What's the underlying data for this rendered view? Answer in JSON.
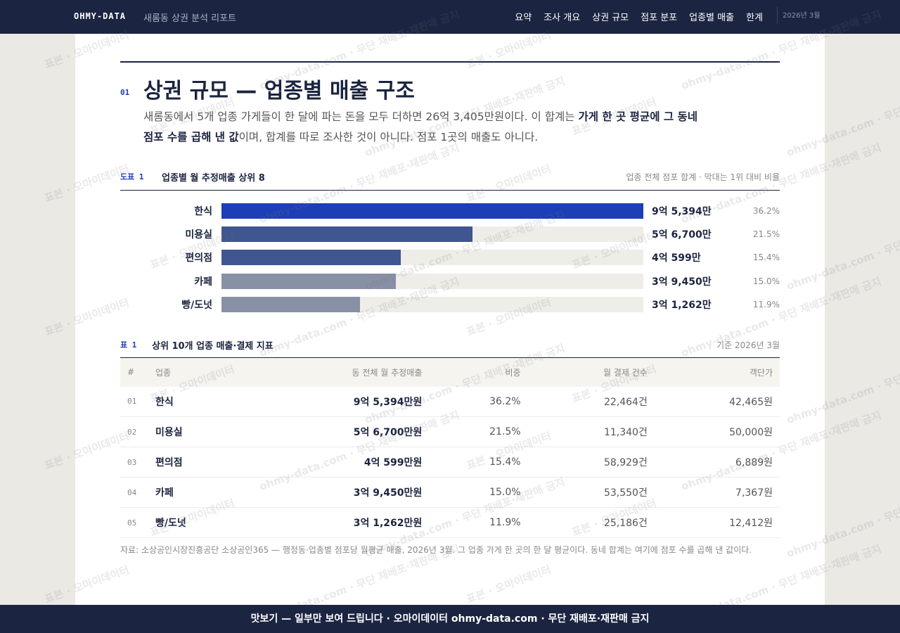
{
  "nav": {
    "brand": "OHMY-DATA",
    "subtitle": "새롬동 상권 분석 리포트",
    "links": [
      "요약",
      "조사 개요",
      "상권 규모",
      "점포 분포",
      "업종별 매출",
      "한계"
    ],
    "date": "2026년 3월"
  },
  "section": {
    "number": "01",
    "title": "상권 규모 — 업종별 매출 구조",
    "paragraph": [
      {
        "text": "새롬동에서 5개 업종 가게들이 한 달에 파는 돈을 모두 더하면 26억 3,405만원이다. 이 합계는 ",
        "bold": false
      },
      {
        "text": "가게 한 곳 평균에 그 동네 점포 수를 곱해 낸 값",
        "bold": true
      },
      {
        "text": "이며, 합계를 따로 조사한 것이 아니다. 점포 1곳의 매출도 아니다.",
        "bold": false
      }
    ]
  },
  "figure": {
    "label": "도표 1",
    "title": "업종별 월 추정매출 상위 8",
    "note": "업종 전체 점포 합계 · 막대는 1위 대비 비율",
    "categories": [
      "한식",
      "미용실",
      "편의점",
      "카페",
      "빵/도넛"
    ],
    "values": [
      95394,
      56700,
      40599,
      39450,
      31262
    ],
    "value_labels": [
      "9억 5,394만",
      "5억 6,700만",
      "4억 599만",
      "3억 9,450만",
      "3억 1,262만"
    ],
    "shares": [
      "36.2%",
      "21.5%",
      "15.4%",
      "15.0%",
      "11.9%"
    ],
    "colors": [
      "#1c3fb6",
      "#3f5690",
      "#3f5690",
      "#8890a5",
      "#8890a5"
    ]
  },
  "table": {
    "label": "표 1",
    "title": "상위 10개 업종 매출·결제 지표",
    "note": "기준 2026년 3월",
    "header": [
      "#",
      "업종",
      "동 전체 월 추정매출",
      "비중",
      "월 결제 건수",
      "객단가"
    ],
    "rows": [
      [
        "01",
        "한식",
        "9억 5,394만원",
        "36.2%",
        "22,464건",
        "42,465원"
      ],
      [
        "02",
        "미용실",
        "5억 6,700만원",
        "21.5%",
        "11,340건",
        "50,000원"
      ],
      [
        "03",
        "편의점",
        "4억 599만원",
        "15.4%",
        "58,929건",
        "6,889원"
      ],
      [
        "04",
        "카페",
        "3억 9,450만원",
        "15.0%",
        "53,550건",
        "7,367원"
      ],
      [
        "05",
        "빵/도넛",
        "3억 1,262만원",
        "11.9%",
        "25,186건",
        "12,412원"
      ]
    ],
    "source": "자료: 소상공인시장진흥공단 소상공인365 — 행정동·업종별 점포당 월평균 매출, 2026년 3월. 그 업종 가게 한 곳의 한 달 평균이다. 동네 합계는 여기에 점포 수를 곱해 낸 값이다."
  },
  "watermark": [
    "표본 · 오마이데이터",
    "ohmy-data.com · 무단 재배포·재판매 금지"
  ],
  "footer": "맛보기 — 일부만 보여 드립니다 · 오마이데이터 ohmy-data.com · 무단 재배포·재판매 금지"
}
